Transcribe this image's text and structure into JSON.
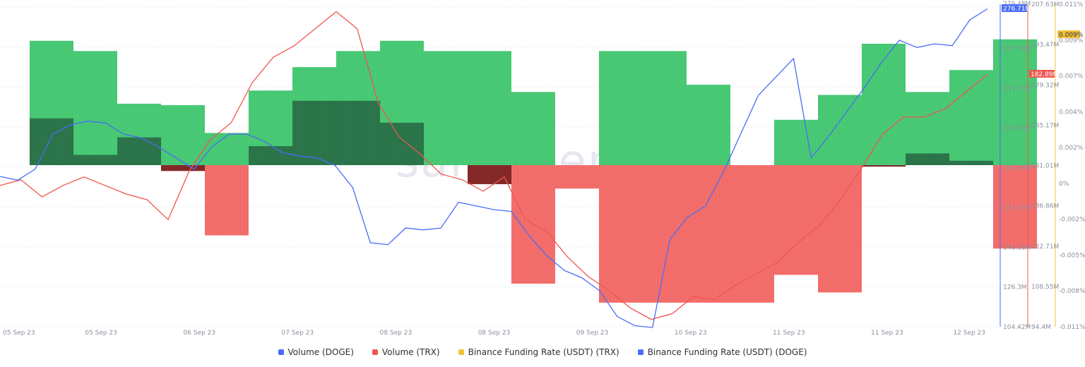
{
  "chart_data": {
    "type": "bar+line",
    "watermark": "santiment",
    "x_labels": [
      "05 Sep 23",
      "05 Sep 23",
      "06 Sep 23",
      "07 Sep 23",
      "08 Sep 23",
      "08 Sep 23",
      "09 Sep 23",
      "10 Sep 23",
      "11 Sep 23",
      "11 Sep 23",
      "12 Sep 23"
    ],
    "axes": {
      "doge_volume": {
        "ticks": [
          "276.71M",
          "257.59M",
          "235.71M",
          "213.83M",
          "191.95M",
          "170.07M",
          "148.18M",
          "126.3M",
          "104.42M"
        ],
        "top_label": "279.48M",
        "current": "276.71M",
        "color": "#4a6cf7"
      },
      "trx_volume": {
        "ticks": [
          "207.63M",
          "193.47M",
          "179.32M",
          "165.17M",
          "151.01M",
          "136.86M",
          "122.71M",
          "108.55M",
          "94.4M"
        ],
        "current": "182.89M",
        "color": "#f0554f"
      },
      "funding_rate": {
        "ticks": [
          "0.011%",
          "0.009%",
          "0.007%",
          "0.004%",
          "0.002%",
          "0%",
          "-0.002%",
          "-0.005%",
          "-0.008%",
          "-0.011%"
        ],
        "current": "0.009%",
        "color": "#f3c13a"
      }
    },
    "funding_rate_bars": [
      {
        "doge": 0.0085,
        "trx": 0.0032
      },
      {
        "doge": 0.0078,
        "trx": 0.0007
      },
      {
        "doge": 0.0042,
        "trx": 0.0019
      },
      {
        "doge": 0.0041,
        "trx": -0.0004
      },
      {
        "doge": 0.0022,
        "trx": -0.0048
      },
      {
        "doge": 0.0051,
        "trx": 0.0013
      },
      {
        "doge": 0.0067,
        "trx": 0.0044
      },
      {
        "doge": 0.0078,
        "trx": 0.0044
      },
      {
        "doge": 0.0085,
        "trx": 0.0029
      },
      {
        "doge": 0.0078,
        "trx": 0.0
      },
      {
        "doge": 0.0078,
        "trx": -0.0013
      },
      {
        "doge": 0.005,
        "trx": -0.0081
      },
      {
        "doge": 0.0,
        "trx": -0.0016
      },
      {
        "doge": 0.0078,
        "trx": -0.0094
      },
      {
        "doge": 0.0078,
        "trx": -0.0094
      },
      {
        "doge": 0.0055,
        "trx": -0.0094
      },
      {
        "doge": 0.0,
        "trx": -0.0094
      },
      {
        "doge": 0.0031,
        "trx": -0.0075
      },
      {
        "doge": 0.0048,
        "trx": -0.0087
      },
      {
        "doge": 0.0083,
        "trx": -0.0001
      },
      {
        "doge": 0.005,
        "trx": 0.0008
      },
      {
        "doge": 0.0065,
        "trx": 0.0003
      },
      {
        "doge": 0.0086,
        "trx": -0.0057
      }
    ],
    "doge_volume_line": [
      186,
      184,
      190,
      209,
      214,
      216,
      215,
      209,
      207,
      202,
      196,
      190,
      202,
      209,
      209,
      205,
      199,
      197,
      196,
      192,
      180,
      150,
      149,
      158,
      157,
      158,
      172,
      170,
      168,
      167,
      154,
      143,
      135,
      131,
      124,
      110,
      105,
      104,
      152,
      164,
      170,
      188,
      209,
      230,
      240,
      250,
      196,
      208,
      221,
      234,
      248,
      260,
      256,
      258,
      257,
      271,
      277
    ],
    "trx_volume_line": [
      144,
      146,
      140,
      144,
      147,
      144,
      141,
      139,
      132,
      149,
      160,
      166,
      180,
      189,
      193,
      199,
      205,
      199,
      173,
      161,
      155,
      148,
      146,
      142,
      147,
      132,
      128,
      119,
      112,
      107,
      101,
      97,
      99,
      105,
      104,
      109,
      113,
      117,
      124,
      130,
      139,
      150,
      162,
      168,
      168,
      171,
      177,
      183
    ]
  },
  "legend": [
    {
      "label": "Volume (DOGE)",
      "color": "#4a6cf7"
    },
    {
      "label": "Volume (TRX)",
      "color": "#f0554f"
    },
    {
      "label": "Binance Funding Rate (USDT) (TRX)",
      "color": "#f3c13a"
    },
    {
      "label": "Binance Funding Rate (USDT) (DOGE)",
      "color": "#4a6cf7"
    }
  ]
}
